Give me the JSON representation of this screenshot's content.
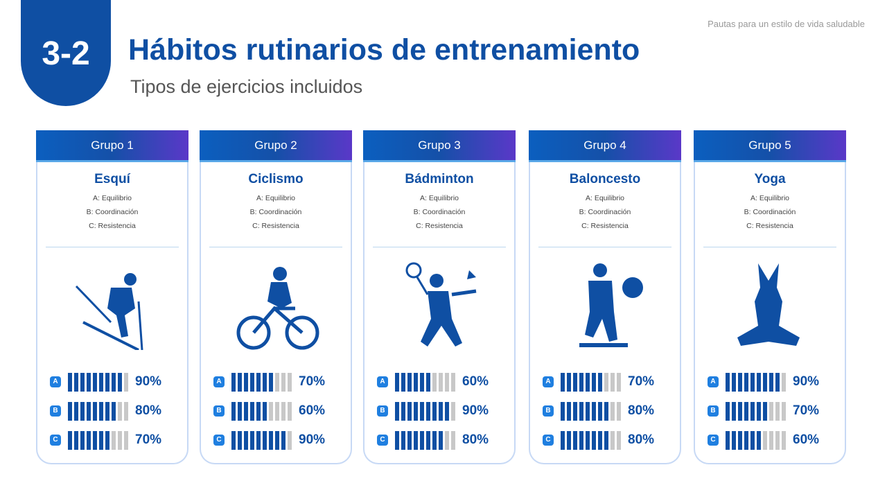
{
  "section_number": "3-2",
  "title": "Hábitos rutinarios de entrenamiento",
  "subtitle": "Tipos de ejercicios incluidos",
  "top_right_note": "Pautas para un estilo de vida saludable",
  "colors": {
    "primary": "#0f4fa3",
    "label": "#1f7fe0",
    "empty": "#c8c8c8"
  },
  "groups": [
    {
      "header": "Grupo 1",
      "sport": "Esquí",
      "icon": "skier-icon",
      "attributes": [
        "A: Equilibrio",
        "B: Coordinación",
        "C: Resistencia"
      ],
      "scores": [
        {
          "label": "A",
          "value": 90,
          "text": "90%"
        },
        {
          "label": "B",
          "value": 80,
          "text": "80%"
        },
        {
          "label": "C",
          "value": 70,
          "text": "70%"
        }
      ]
    },
    {
      "header": "Grupo 2",
      "sport": "Ciclismo",
      "icon": "cyclist-icon",
      "attributes": [
        "A: Equilibrio",
        "B: Coordinación",
        "C: Resistencia"
      ],
      "scores": [
        {
          "label": "A",
          "value": 70,
          "text": "70%"
        },
        {
          "label": "B",
          "value": 60,
          "text": "60%"
        },
        {
          "label": "C",
          "value": 90,
          "text": "90%"
        }
      ]
    },
    {
      "header": "Grupo 3",
      "sport": "Bádminton",
      "icon": "badminton-player-icon",
      "attributes": [
        "A: Equilibrio",
        "B: Coordinación",
        "C: Resistencia"
      ],
      "scores": [
        {
          "label": "A",
          "value": 60,
          "text": "60%"
        },
        {
          "label": "B",
          "value": 90,
          "text": "90%"
        },
        {
          "label": "C",
          "value": 80,
          "text": "80%"
        }
      ]
    },
    {
      "header": "Grupo 4",
      "sport": "Baloncesto",
      "icon": "basketball-player-icon",
      "attributes": [
        "A: Equilibrio",
        "B: Coordinación",
        "C: Resistencia"
      ],
      "scores": [
        {
          "label": "A",
          "value": 70,
          "text": "70%"
        },
        {
          "label": "B",
          "value": 80,
          "text": "80%"
        },
        {
          "label": "C",
          "value": 80,
          "text": "80%"
        }
      ]
    },
    {
      "header": "Grupo 5",
      "sport": "Yoga",
      "icon": "yoga-pose-icon",
      "attributes": [
        "A: Equilibrio",
        "B: Coordinación",
        "C: Resistencia"
      ],
      "scores": [
        {
          "label": "A",
          "value": 90,
          "text": "90%"
        },
        {
          "label": "B",
          "value": 70,
          "text": "70%"
        },
        {
          "label": "C",
          "value": 60,
          "text": "60%"
        }
      ]
    }
  ]
}
